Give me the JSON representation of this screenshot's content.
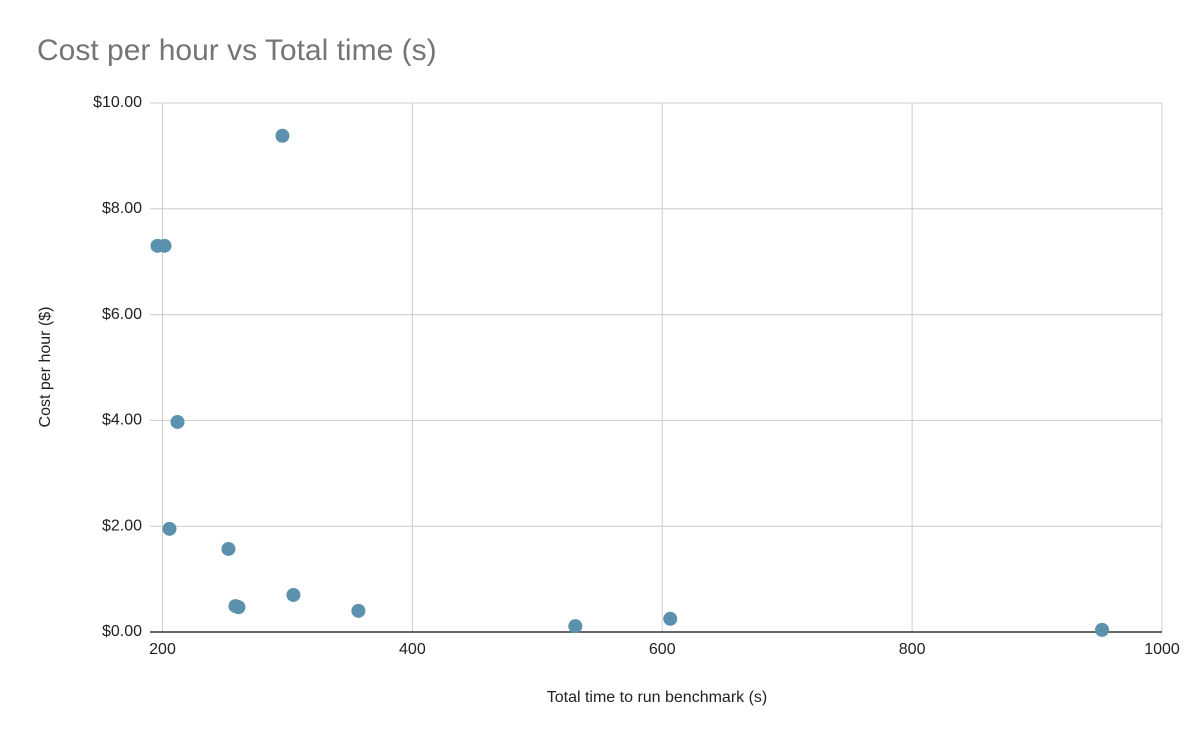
{
  "chart_data": {
    "type": "scatter",
    "title": "Cost per hour vs Total time (s)",
    "x_label": "Total time to run benchmark (s)",
    "y_label": "Cost per hour ($)",
    "color": "#5b91ac",
    "grid": true,
    "x": [
      196,
      201.6,
      296,
      212,
      205.6,
      252.8,
      258.4,
      260.8,
      304.8,
      356.8,
      530.4,
      606.4,
      952
    ],
    "values": [
      7.3,
      7.3,
      9.38,
      3.97,
      1.95,
      1.57,
      0.49,
      0.47,
      0.7,
      0.4,
      0.11,
      0.25,
      0.04
    ],
    "xlim": [
      190,
      1000
    ],
    "xticks": [
      200,
      400,
      600,
      800,
      1000
    ],
    "ylim": [
      0,
      10
    ],
    "yticks": [
      {
        "value": 0,
        "label": "$0.00"
      },
      {
        "value": 2,
        "label": "$2.00"
      },
      {
        "value": 4,
        "label": "$4.00"
      },
      {
        "value": 6,
        "label": "$6.00"
      },
      {
        "value": 8,
        "label": "$8.00"
      },
      {
        "value": 10,
        "label": "$10.00"
      }
    ]
  }
}
